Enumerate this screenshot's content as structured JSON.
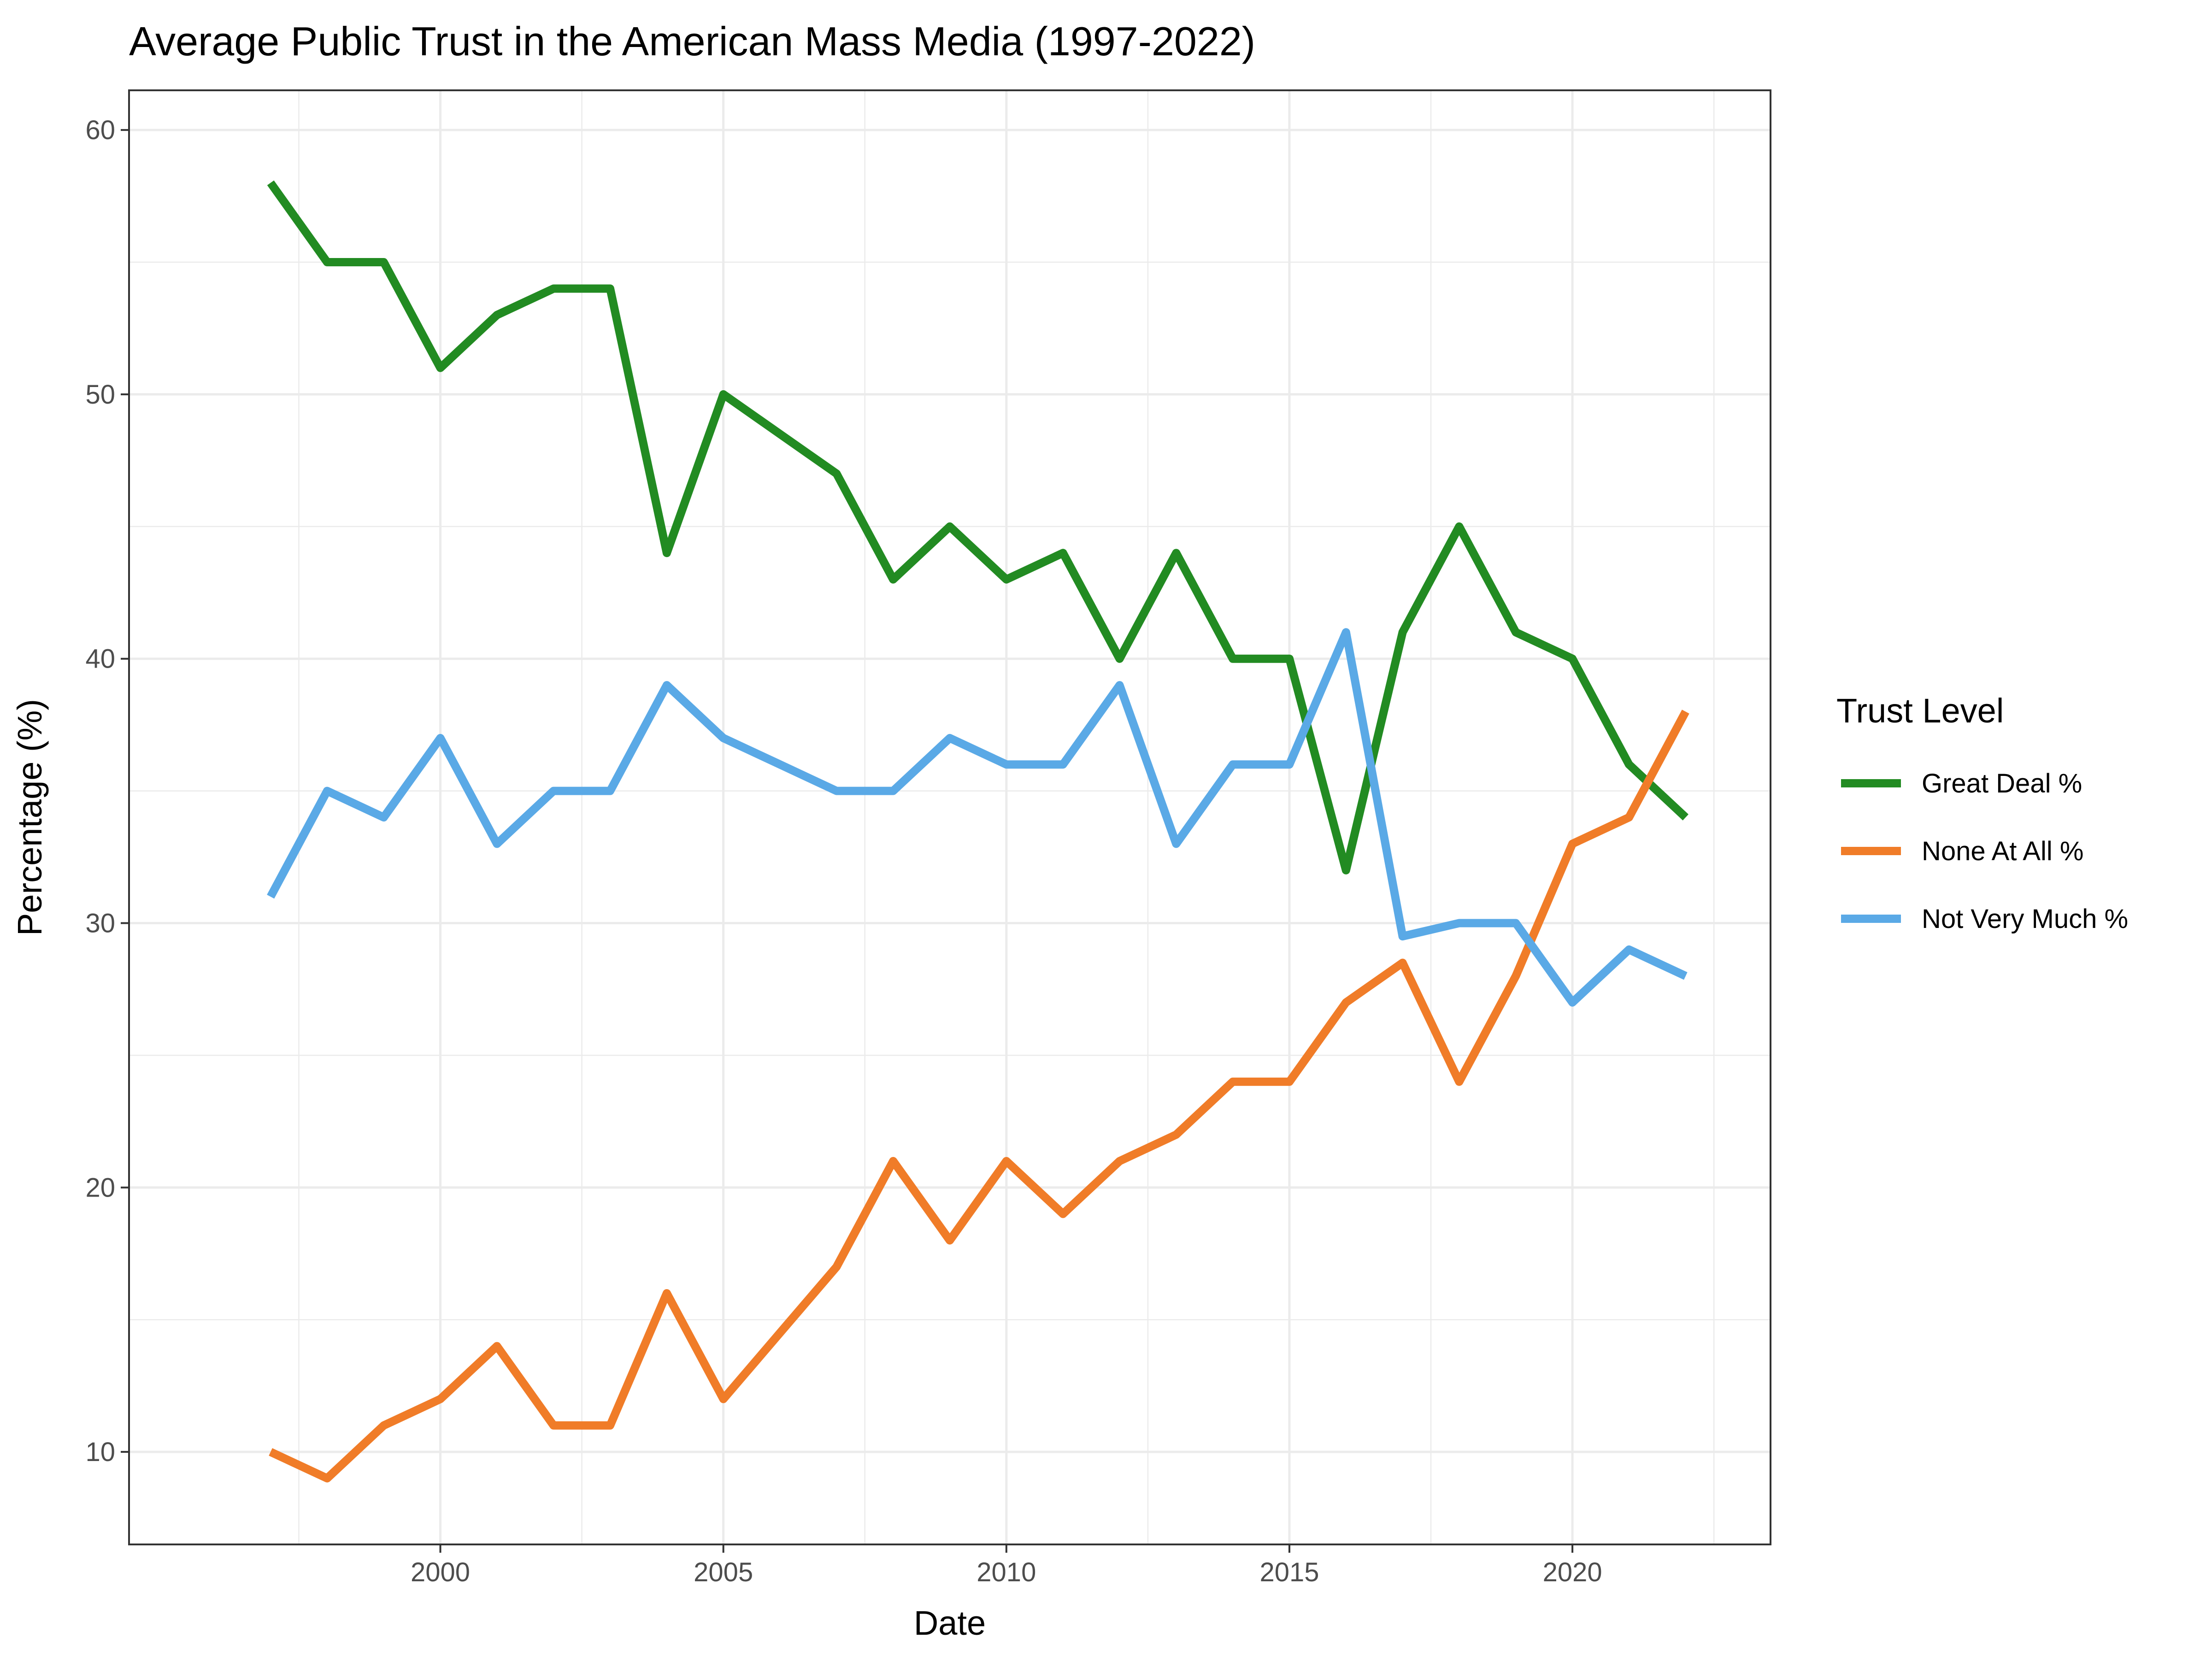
{
  "chart_data": {
    "type": "line",
    "title": "Average Public Trust in the American Mass Media (1997-2022)",
    "xlabel": "Date",
    "ylabel": "Percentage (%)",
    "xlim": [
      1994.5,
      2023.5
    ],
    "ylim": [
      6.5,
      61.5
    ],
    "x_ticks": [
      2000,
      2005,
      2010,
      2015,
      2020
    ],
    "x_tick_labels": [
      "2000",
      "2005",
      "2010",
      "2015",
      "2020"
    ],
    "y_ticks": [
      10,
      20,
      30,
      40,
      50,
      60
    ],
    "y_tick_labels": [
      "10",
      "20",
      "30",
      "40",
      "50",
      "60"
    ],
    "grid": true,
    "legend": {
      "title": "Trust Level",
      "position": "right"
    },
    "x": [
      1997,
      1998,
      1999,
      2000,
      2001,
      2002,
      2003,
      2004,
      2005,
      2006,
      2007,
      2008,
      2009,
      2010,
      2011,
      2012,
      2013,
      2014,
      2015,
      2016,
      2017,
      2018,
      2019,
      2020,
      2021,
      2022
    ],
    "series": [
      {
        "name": "Great Deal %",
        "color": "#228b22",
        "values": [
          58,
          55,
          55,
          51,
          53,
          54,
          54,
          44,
          50,
          48.5,
          47,
          43,
          45,
          43,
          44,
          40,
          44,
          40,
          40,
          32,
          41,
          45,
          41,
          40,
          36,
          34
        ]
      },
      {
        "name": "None At All %",
        "color": "#f07c28",
        "values": [
          10,
          9,
          11,
          12,
          14,
          11,
          11,
          16,
          12,
          14.5,
          17,
          21,
          18,
          21,
          19,
          21,
          22,
          24,
          24,
          27,
          28.5,
          24,
          28,
          33,
          34,
          38
        ]
      },
      {
        "name": "Not Very Much %",
        "color": "#5aa9e6",
        "values": [
          31,
          35,
          34,
          37,
          33,
          35,
          35,
          39,
          37,
          36,
          35,
          35,
          37,
          36,
          36,
          39,
          33,
          36,
          36,
          41,
          29.5,
          30,
          30,
          27,
          29,
          28
        ]
      }
    ]
  }
}
